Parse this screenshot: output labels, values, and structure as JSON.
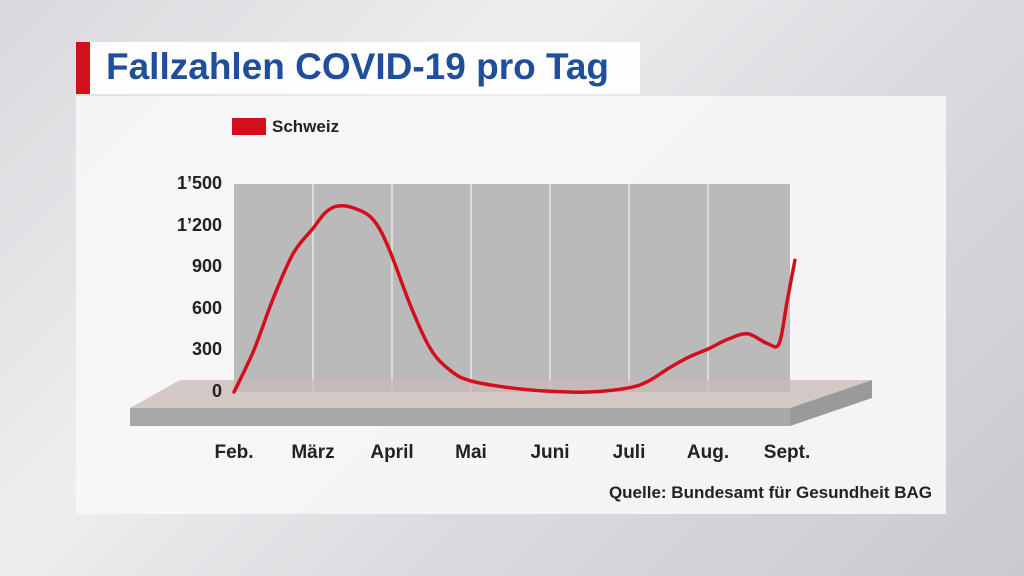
{
  "header": {
    "title": "Fallzahlen COVID-19 pro Tag"
  },
  "legend": {
    "label": "Schweiz"
  },
  "source": "Quelle: Bundesamt für Gesundheit BAG",
  "colors": {
    "accent": "#d40f1c",
    "title": "#1f4e9a",
    "plot_bg": "#bababa",
    "floor_top": "#c8b9b6",
    "floor_front": "#a8a8a8"
  },
  "chart_data": {
    "type": "line",
    "title": "Fallzahlen COVID-19 pro Tag",
    "xlabel": "",
    "ylabel": "",
    "categories": [
      "Feb.",
      "März",
      "April",
      "Mai",
      "Juni",
      "Juli",
      "Aug.",
      "Sept."
    ],
    "y_tick_labels": [
      "0",
      "300",
      "600",
      "900",
      "1’200",
      "1’500"
    ],
    "y_ticks": [
      0,
      300,
      600,
      900,
      1200,
      1500
    ],
    "ylim": [
      0,
      1500
    ],
    "grid": true,
    "legend_position": "top-left",
    "series": [
      {
        "name": "Schweiz",
        "color": "#d40f1c",
        "x": [
          0,
          0.25,
          0.5,
          0.75,
          1.0,
          1.15,
          1.3,
          1.5,
          1.75,
          1.95,
          2.25,
          2.5,
          2.75,
          3.0,
          3.5,
          4.0,
          4.5,
          5.0,
          5.25,
          5.5,
          5.75,
          6.0,
          6.25,
          6.5,
          6.75,
          6.9,
          7.0,
          7.1
        ],
        "values": [
          0,
          300,
          680,
          1000,
          1180,
          1290,
          1340,
          1330,
          1250,
          1050,
          600,
          300,
          150,
          80,
          30,
          5,
          0,
          30,
          80,
          170,
          250,
          310,
          380,
          420,
          350,
          350,
          650,
          950
        ]
      }
    ]
  }
}
